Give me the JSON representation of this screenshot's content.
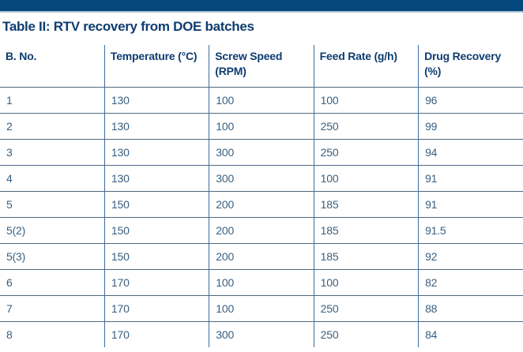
{
  "page": {
    "title": "Table II: RTV recovery from DOE batches"
  },
  "colors": {
    "top_bar": "#04477c",
    "top_bar_edge": "#b3c6d3",
    "heading_text": "#0e3d70",
    "body_text": "#3a6080",
    "vertical_border": "#3e6f9f",
    "horizontal_border": "#50697f",
    "background": "#ffffff"
  },
  "chart_data": {
    "type": "table",
    "title": "Table II: RTV recovery from DOE batches",
    "columns": [
      "B. No.",
      "Temperature (°C)",
      "Screw Speed (RPM)",
      "Feed Rate (g/h)",
      "Drug Recovery (%)"
    ],
    "rows": [
      [
        "1",
        "130",
        "100",
        "100",
        "96"
      ],
      [
        "2",
        "130",
        "100",
        "250",
        "99"
      ],
      [
        "3",
        "130",
        "300",
        "250",
        "94"
      ],
      [
        "4",
        "130",
        "300",
        "100",
        "91"
      ],
      [
        "5",
        "150",
        "200",
        "185",
        "91"
      ],
      [
        "5(2)",
        "150",
        "200",
        "185",
        "91.5"
      ],
      [
        "5(3)",
        "150",
        "200",
        "185",
        "92"
      ],
      [
        "6",
        "170",
        "100",
        "100",
        "82"
      ],
      [
        "7",
        "170",
        "100",
        "250",
        "88"
      ],
      [
        "8",
        "170",
        "300",
        "250",
        "84"
      ]
    ]
  }
}
